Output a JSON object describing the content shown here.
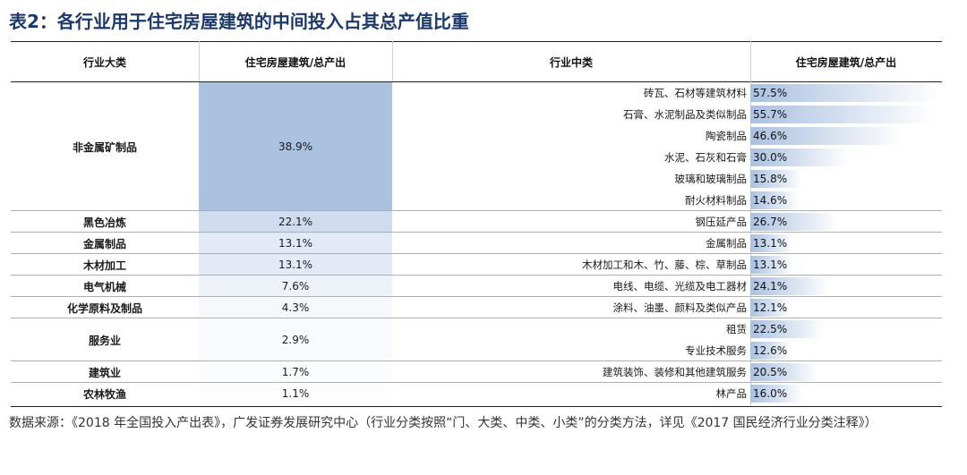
{
  "title": "表2：各行业用于住宅房屋建筑的中间投入占其总产值比重",
  "headers": [
    "行业大类",
    "住宅房屋建筑/总产出",
    "行业中类",
    "住宅房屋建筑/总产出"
  ],
  "major_rows": [
    {
      "name": "非金属矿制品",
      "ratio": "38.9%",
      "ratio_value": 38.9
    },
    {
      "name": "黑色冶炼",
      "ratio": "22.1%",
      "ratio_value": 22.1
    },
    {
      "name": "金属制品",
      "ratio": "13.1%",
      "ratio_value": 13.1
    },
    {
      "name": "木材加工",
      "ratio": "13.1%",
      "ratio_value": 13.1
    },
    {
      "name": "电气机械",
      "ratio": "7.6%",
      "ratio_value": 7.6
    },
    {
      "name": "化学原料及制品",
      "ratio": "4.3%",
      "ratio_value": 4.3
    },
    {
      "name": "服务业",
      "ratio": "2.9%",
      "ratio_value": 2.9
    },
    {
      "name": "建筑业",
      "ratio": "1.7%",
      "ratio_value": 1.7
    },
    {
      "name": "农林牧渔",
      "ratio": "1.1%",
      "ratio_value": 1.1
    }
  ],
  "sub_rows": [
    {
      "name": "砖瓦、石材等建筑材料",
      "ratio": "57.5%",
      "value": 57.5
    },
    {
      "name": "石膏、水泥制品及类似制品",
      "ratio": "55.7%",
      "value": 55.7
    },
    {
      "name": "陶瓷制品",
      "ratio": "46.6%",
      "value": 46.6
    },
    {
      "name": "水泥、石灰和石膏",
      "ratio": "30.0%",
      "value": 30.0
    },
    {
      "name": "玻璃和玻璃制品",
      "ratio": "15.8%",
      "value": 15.8
    },
    {
      "name": "耐火材料制品",
      "ratio": "14.6%",
      "value": 14.6
    },
    {
      "name": "钢压延产品",
      "ratio": "26.7%",
      "value": 26.7
    },
    {
      "name": "金属制品",
      "ratio": "13.1%",
      "value": 13.1
    },
    {
      "name": "木材加工和木、竹、藤、棕、草制品",
      "ratio": "13.1%",
      "value": 13.1
    },
    {
      "name": "电线、电缆、光缆及电工器材",
      "ratio": "24.1%",
      "value": 24.1
    },
    {
      "name": "涂料、油墨、颜料及类似产品",
      "ratio": "12.1%",
      "value": 12.1
    },
    {
      "name": "租赁",
      "ratio": "22.5%",
      "value": 22.5
    },
    {
      "name": "专业技术服务",
      "ratio": "12.6%",
      "value": 12.6
    },
    {
      "name": "建筑装饰、装修和其他建筑服务",
      "ratio": "20.5%",
      "value": 20.5
    },
    {
      "name": "林产品",
      "ratio": "16.0%",
      "value": 16.0
    }
  ],
  "source": "数据来源：《2018 年全国投入产出表》，广发证券发展研究中心（行业分类按照“门、大类、中类、小类”的分类方法，详见《2017 国民经济行业分类注释》）",
  "colors": {
    "title": "#1b3a6b",
    "bar_dark": "#aac1e0",
    "bar_light": "#ffffff",
    "separator": "#9fb3d1"
  }
}
